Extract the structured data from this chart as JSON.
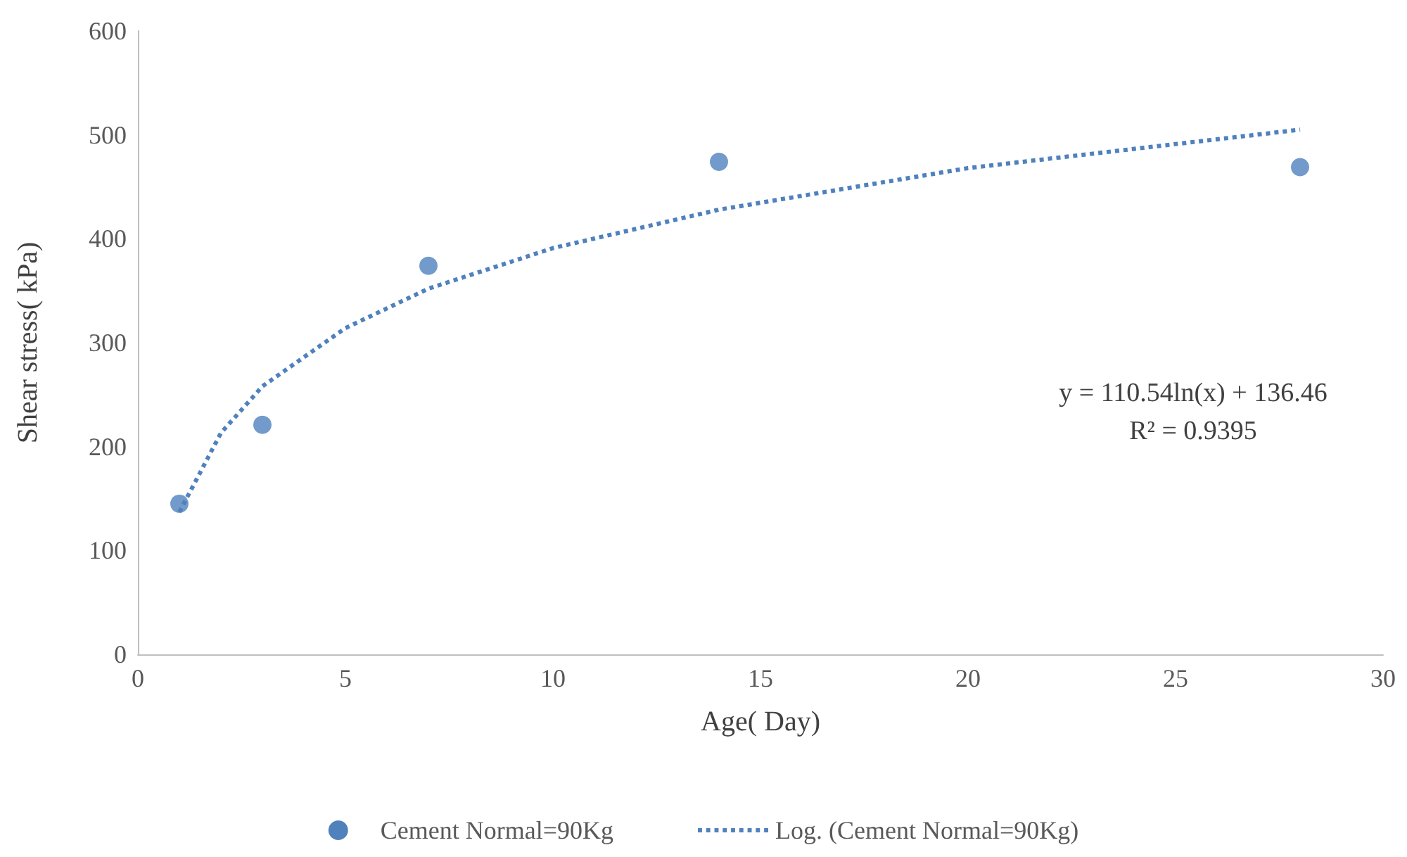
{
  "chart_data": {
    "type": "scatter",
    "xlabel": "Age( Day)",
    "ylabel": "Shear stress( kPa)",
    "x": [
      1,
      3,
      7,
      14,
      28
    ],
    "series": [
      {
        "name": "Cement Normal=90Kg",
        "color": "#4f81bd",
        "marker": "circle",
        "values": [
          145,
          221,
          374,
          474,
          469
        ]
      },
      {
        "name": "Log. (Cement Normal=90Kg)",
        "type": "line",
        "color": "#4f81bd",
        "line_style": "dotted",
        "marker": "none",
        "x": [
          1,
          2,
          3,
          5,
          7,
          10,
          14,
          20,
          28
        ],
        "values": [
          137,
          213,
          258,
          314,
          352,
          391,
          428,
          468,
          505
        ]
      }
    ],
    "xlim": [
      0,
      30
    ],
    "xticks": [
      0,
      5,
      10,
      15,
      20,
      25,
      30
    ],
    "ylim": [
      0,
      600
    ],
    "yticks": [
      0,
      100,
      200,
      300,
      400,
      500,
      600
    ],
    "grid": false,
    "legend": "bottom",
    "annotations": [
      "y = 110.54ln(x) + 136.46",
      "R² = 0.9395"
    ]
  }
}
